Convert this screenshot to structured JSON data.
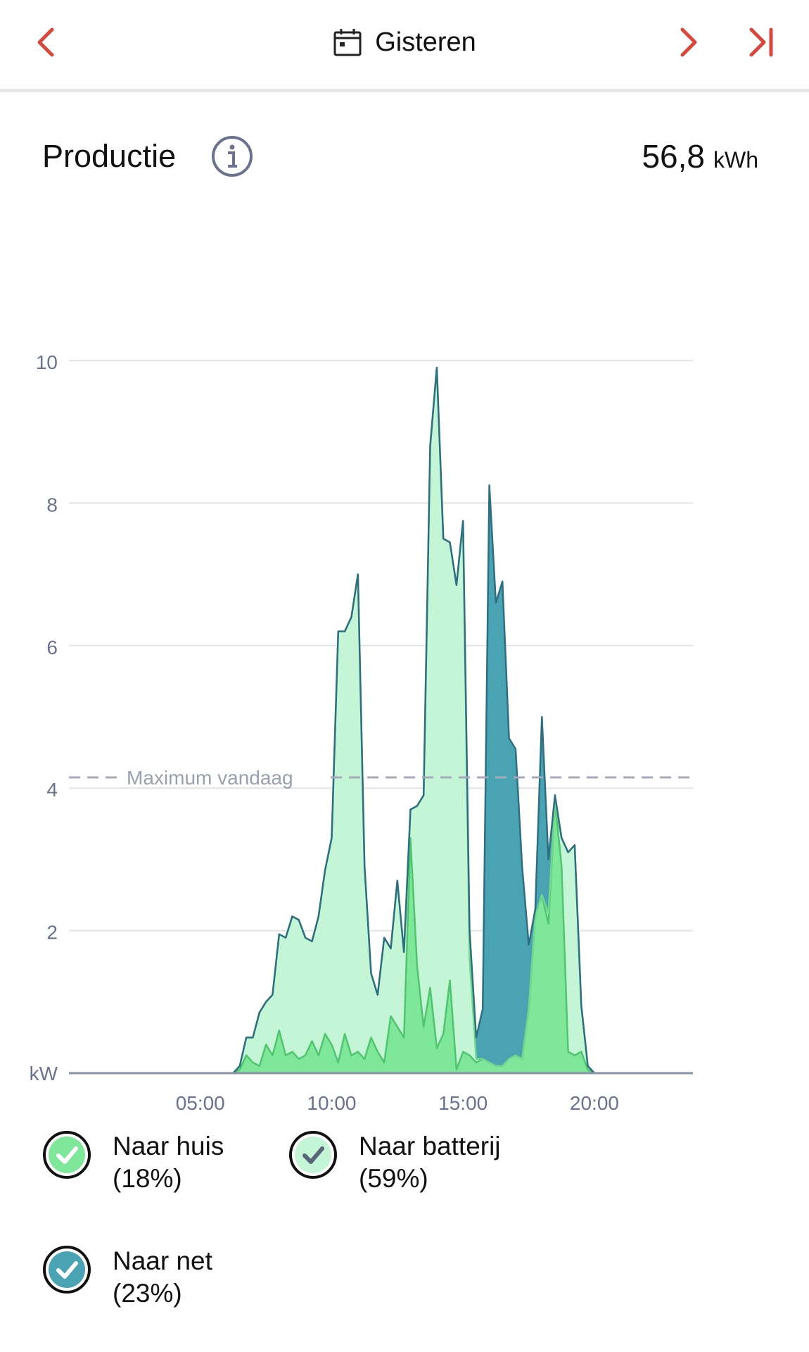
{
  "nav": {
    "title": "Gisteren",
    "accent_color": "#d9463b",
    "prev_icon": "chevron-left-icon",
    "next_icon": "chevron-right-icon",
    "last_icon": "skip-to-end-icon",
    "calendar_icon": "calendar-icon"
  },
  "header": {
    "title": "Productie",
    "info_icon": "info-icon",
    "total_value": "56,8",
    "total_unit": "kWh"
  },
  "legend": {
    "huis": {
      "label": "Naar huis",
      "pct": "(18%)",
      "color": "#7ee79a"
    },
    "batterij": {
      "label": "Naar batterij",
      "pct": "(59%)",
      "color": "#c3f5d6"
    },
    "net": {
      "label": "Naar net",
      "pct": "(23%)",
      "color": "#4aa3b3"
    }
  },
  "chart_data": {
    "type": "area",
    "stacked": true,
    "ylabel": "kW",
    "ylim": [
      0,
      11.5
    ],
    "yticks": [
      2,
      4,
      6,
      8,
      10
    ],
    "xlim": [
      0,
      23.75
    ],
    "xticks": [
      {
        "value": 5,
        "label": "05:00"
      },
      {
        "value": 10,
        "label": "10:00"
      },
      {
        "value": 15,
        "label": "15:00"
      },
      {
        "value": 20,
        "label": "20:00"
      }
    ],
    "grid": true,
    "reference_line": {
      "label": "Maximum vandaag",
      "value": 4.15
    },
    "x": [
      6.25,
      6.5,
      6.75,
      7,
      7.25,
      7.5,
      7.75,
      8,
      8.25,
      8.5,
      8.75,
      9,
      9.25,
      9.5,
      9.75,
      10,
      10.25,
      10.5,
      10.75,
      11,
      11.25,
      11.5,
      11.75,
      12,
      12.25,
      12.5,
      12.75,
      13,
      13.25,
      13.5,
      13.75,
      14,
      14.25,
      14.5,
      14.75,
      15,
      15.25,
      15.5,
      15.75,
      16,
      16.25,
      16.5,
      16.75,
      17,
      17.25,
      17.5,
      17.75,
      18,
      18.25,
      18.5,
      18.75,
      19,
      19.25,
      19.5,
      19.75,
      20,
      20.25,
      20.5,
      20.75,
      21,
      21.25
    ],
    "series": [
      {
        "name": "Naar huis",
        "values": [
          0,
          0.05,
          0.25,
          0.15,
          0.1,
          0.4,
          0.25,
          0.6,
          0.25,
          0.3,
          0.2,
          0.25,
          0.45,
          0.25,
          0.55,
          0.4,
          0.15,
          0.55,
          0.25,
          0.3,
          0.2,
          0.5,
          0.3,
          0.15,
          0.8,
          0.65,
          0.5,
          3.3,
          1.5,
          0.65,
          1.2,
          0.35,
          0.55,
          1.3,
          0.05,
          0.3,
          0.25,
          0.15,
          0.2,
          0.15,
          0.1,
          0.1,
          0.2,
          0.25,
          0.2,
          0.9,
          2.2,
          2.5,
          2.1,
          3.8,
          2.9,
          0.3,
          0.25,
          0.3,
          0.05,
          0,
          0,
          0,
          0,
          0,
          0
        ]
      },
      {
        "name": "Naar batterij",
        "values": [
          0,
          0.05,
          0.25,
          0.35,
          0.75,
          0.6,
          0.85,
          1.35,
          1.65,
          1.9,
          1.95,
          1.65,
          1.4,
          1.95,
          2.3,
          2.9,
          6.05,
          5.65,
          6.15,
          6.7,
          2.7,
          0.9,
          0.8,
          1.75,
          0.95,
          2.05,
          1.2,
          0.4,
          2.25,
          3.25,
          7.6,
          9.55,
          6.95,
          6.15,
          6.8,
          7.45,
          1.35,
          0.05,
          0,
          0,
          0,
          0,
          0,
          0,
          0,
          0,
          0,
          0,
          0.15,
          0,
          0.4,
          2.8,
          2.95,
          0.65,
          0.05,
          0,
          0,
          0,
          0,
          0,
          0
        ]
      },
      {
        "name": "Naar net",
        "values": [
          0,
          0,
          0,
          0,
          0,
          0,
          0,
          0,
          0,
          0,
          0,
          0,
          0,
          0,
          0,
          0,
          0,
          0,
          0,
          0,
          0,
          0,
          0,
          0,
          0,
          0,
          0,
          0,
          0,
          0,
          0,
          0,
          0,
          0,
          0,
          0,
          0.4,
          0.3,
          0.7,
          8.1,
          6.5,
          6.8,
          4.5,
          4.3,
          2.7,
          0.9,
          0.1,
          2.5,
          0.75,
          0.1,
          0,
          0,
          0,
          0,
          0,
          0,
          0,
          0,
          0,
          0,
          0
        ]
      }
    ]
  }
}
